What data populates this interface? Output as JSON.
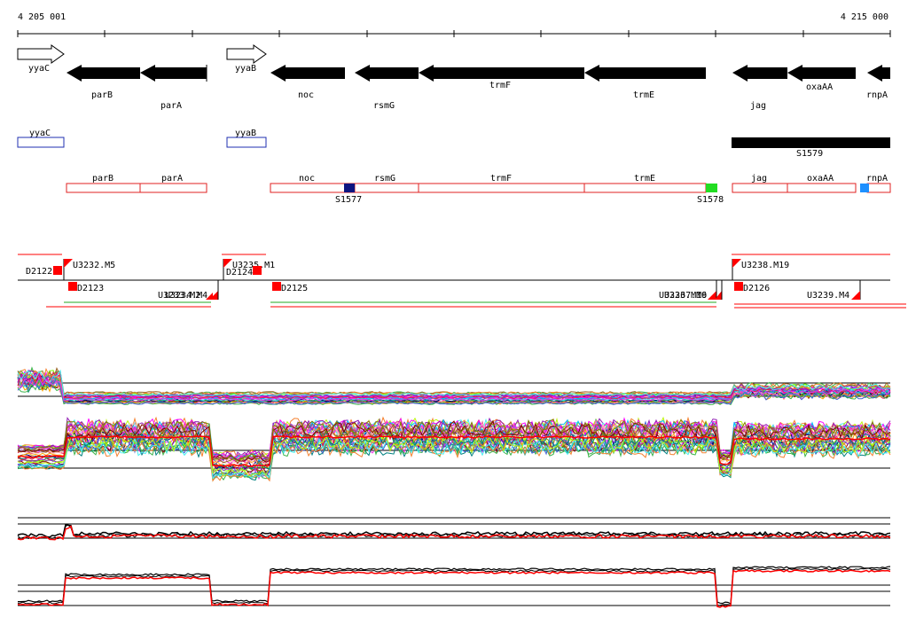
{
  "ruler": {
    "start_label": "4 205 001",
    "end_label": "4 215 000"
  },
  "colors": {
    "gene_fill": "#000000",
    "flank_gene_stroke": "#000000",
    "blue_box": "#1f2fb0",
    "red_box": "#e02020",
    "s1577_marker": "#0d1580",
    "s1578_marker": "#22dd22",
    "rnpa_marker": "#1e90ff",
    "signal_red": "#ff0000"
  },
  "genes_track": [
    {
      "name": "yyaC",
      "label": "yyaC",
      "strand": "+",
      "style": "outline"
    },
    {
      "name": "parB",
      "label": "parB",
      "strand": "-",
      "style": "filled"
    },
    {
      "name": "parA",
      "label": "parA",
      "strand": "-",
      "style": "filled"
    },
    {
      "name": "yyaB",
      "label": "yyaB",
      "strand": "+",
      "style": "outline"
    },
    {
      "name": "noc",
      "label": "noc",
      "strand": "-",
      "style": "filled"
    },
    {
      "name": "rsmG",
      "label": "rsmG",
      "strand": "-",
      "style": "filled"
    },
    {
      "name": "trmF",
      "label": "trmF",
      "strand": "-",
      "style": "filled"
    },
    {
      "name": "trmE",
      "label": "trmE",
      "strand": "-",
      "style": "filled"
    },
    {
      "name": "jag",
      "label": "jag",
      "strand": "-",
      "style": "filled"
    },
    {
      "name": "oxaAA",
      "label": "oxaAA",
      "strand": "-",
      "style": "filled"
    },
    {
      "name": "rnpA",
      "label": "rnpA",
      "strand": "-",
      "style": "filled"
    }
  ],
  "box_track": {
    "blue": [
      {
        "name": "yyaC",
        "label": "yyaC"
      },
      {
        "name": "yyaB",
        "label": "yyaB"
      }
    ],
    "black_bar": {
      "label": "S1579"
    },
    "red": [
      {
        "name": "parB",
        "label": "parB"
      },
      {
        "name": "parA",
        "label": "parA"
      },
      {
        "name": "noc",
        "label": "noc"
      },
      {
        "name": "rsmG",
        "label": "rsmG"
      },
      {
        "name": "trmF",
        "label": "trmF"
      },
      {
        "name": "trmE",
        "label": "trmE"
      },
      {
        "name": "jag",
        "label": "jag"
      },
      {
        "name": "oxaAA",
        "label": "oxaAA"
      },
      {
        "name": "rnpA",
        "label": "rnpA"
      }
    ],
    "markers": [
      {
        "label": "S1577"
      },
      {
        "label": "S1578"
      }
    ]
  },
  "feature_track": {
    "labels": {
      "D2122": "D2122",
      "U3232": "U3232.M5",
      "D2123": "D2123",
      "U3233": "U3233.M2",
      "U3234": "U3234.M4",
      "D2124": "D2124",
      "U3235": "U3235.M1",
      "D2125": "D2125",
      "U3236": "U3236.M16",
      "U3237": "U3237.M9",
      "U3238": "U3238.M19",
      "D2126": "D2126",
      "U3239": "U3239.M4"
    }
  }
}
